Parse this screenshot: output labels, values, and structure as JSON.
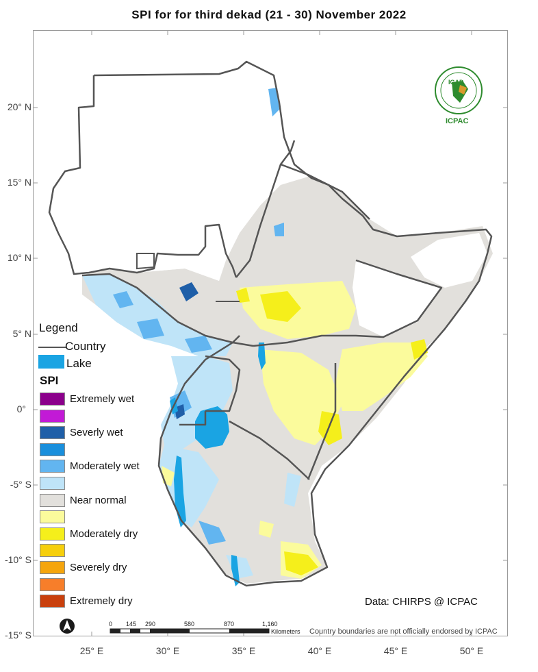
{
  "title": "SPI   for   for third  dekad (21 - 30)  November 2022",
  "latitude_labels": [
    "20° N",
    "15° N",
    "10° N",
    "5° N",
    "0°",
    "-5° S",
    "-10° S",
    "-15° S"
  ],
  "longitude_labels": [
    "25° E",
    "30° E",
    "35° E",
    "40° E",
    "45° E",
    "50° E"
  ],
  "legend": {
    "title": "Legend",
    "country_label": "Country",
    "lake_label": "Lake",
    "spi_title": "SPI",
    "items": [
      {
        "label": "Extremely wet",
        "color": "#8b008b"
      },
      {
        "label": "",
        "color": "#c21ad6"
      },
      {
        "label": "Severly wet",
        "color": "#1f5fa8"
      },
      {
        "label": "",
        "color": "#1a8fdc"
      },
      {
        "label": "Moderately wet",
        "color": "#62b5f0"
      },
      {
        "label": "",
        "color": "#bfe4f8"
      },
      {
        "label": "Near normal",
        "color": "#e2e0dc"
      },
      {
        "label": "",
        "color": "#fbfb9c"
      },
      {
        "label": "Moderately dry",
        "color": "#f5ef1b"
      },
      {
        "label": "",
        "color": "#f6cf0c"
      },
      {
        "label": "Severely dry",
        "color": "#f5a50d"
      },
      {
        "label": "",
        "color": "#f77e2a"
      },
      {
        "label": "Extremely dry",
        "color": "#c9400d"
      }
    ]
  },
  "data_source": "Data: CHIRPS @ ICPAC",
  "scale_bar": {
    "ticks": [
      "0",
      "145",
      "290",
      "580",
      "870",
      "1,160"
    ],
    "unit": "Kilometers"
  },
  "disclaimer": "Country boundaries are not officially endorsed by ICPAC",
  "logo": {
    "top_text": "IGAD",
    "bottom_text": "ICPAC"
  },
  "colors": {
    "lake": "#1aa4e3",
    "border": "#555555",
    "frame": "#9a9a9a"
  }
}
